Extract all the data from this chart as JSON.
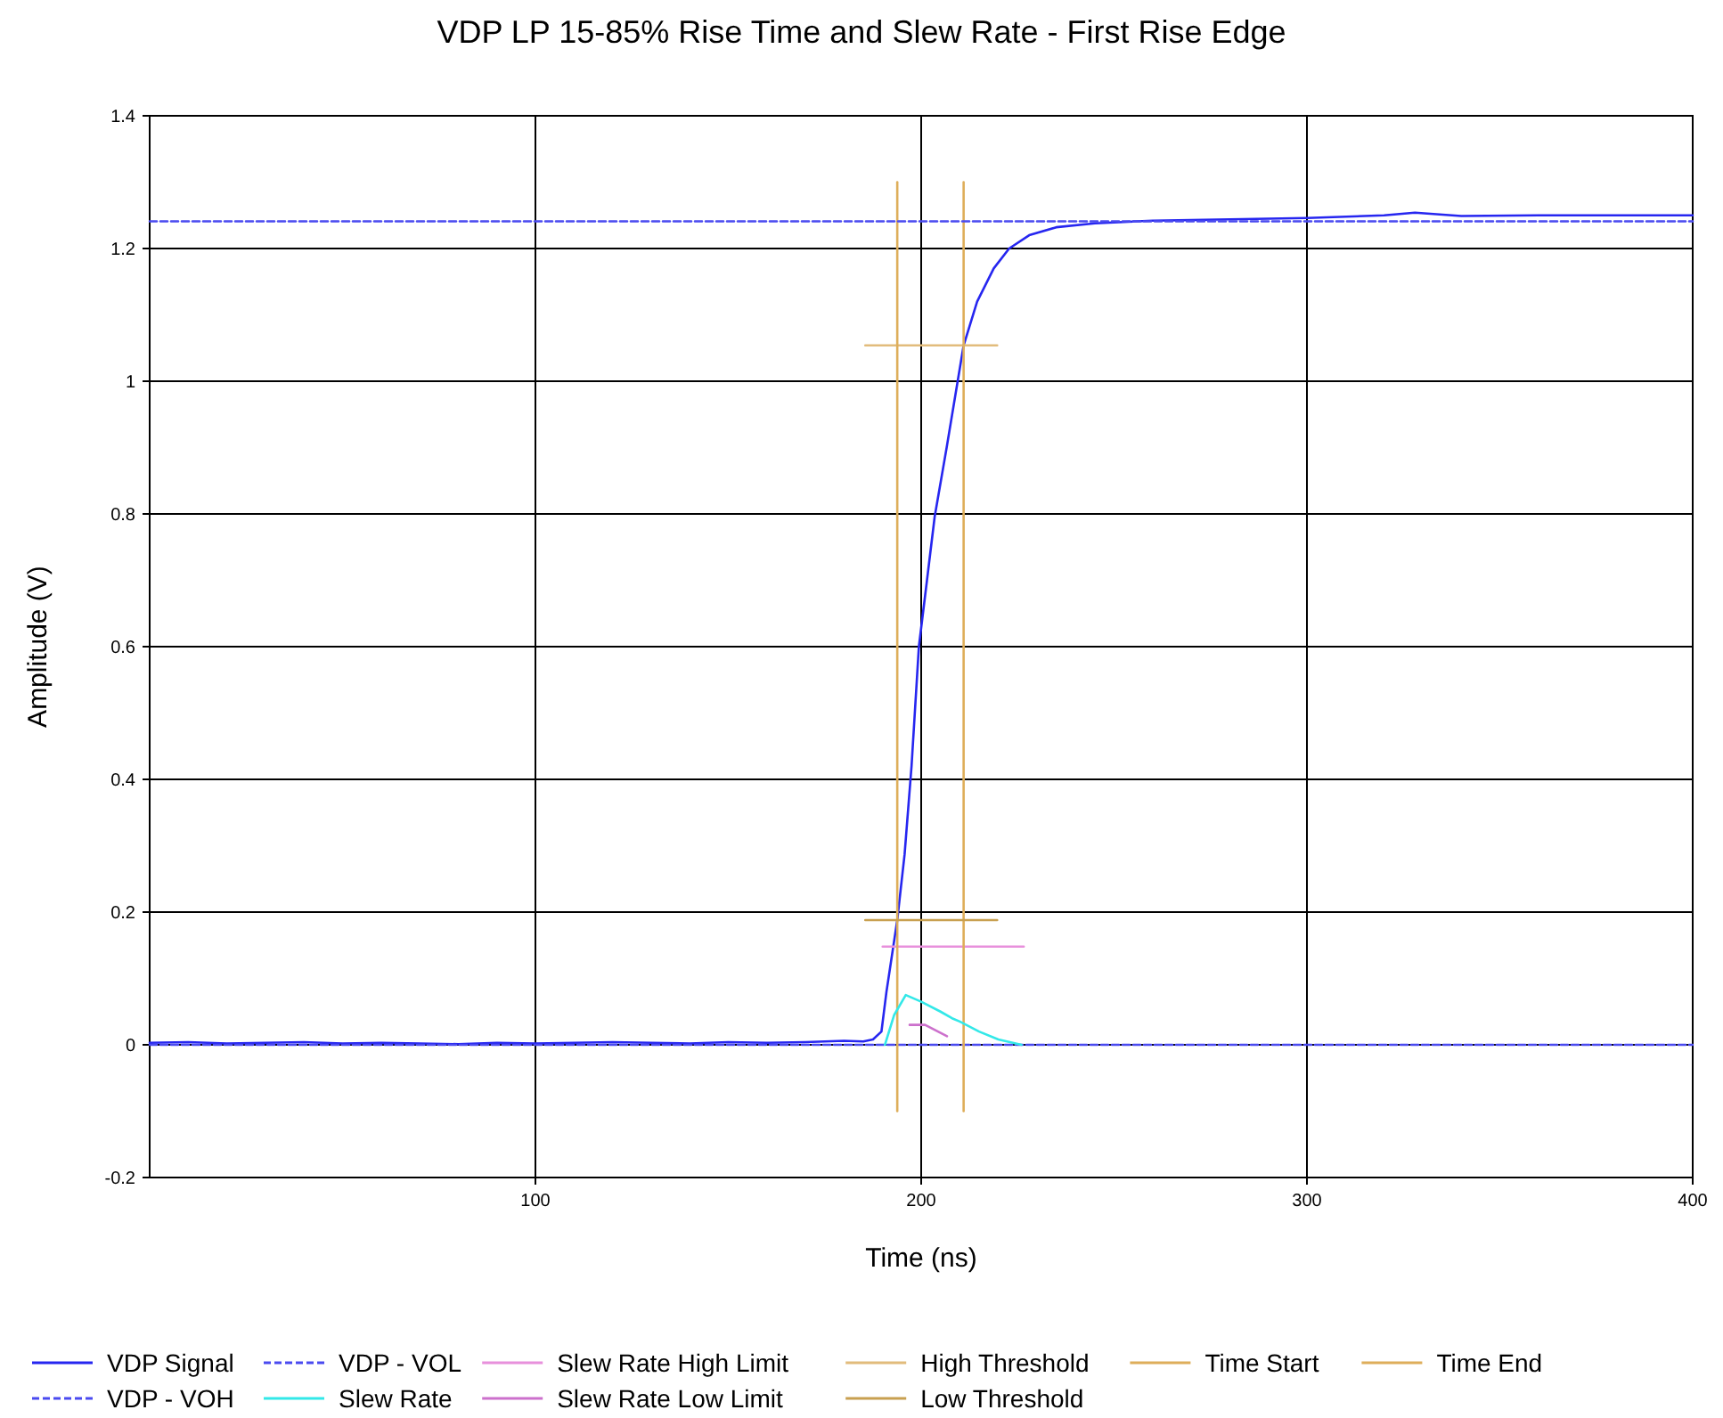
{
  "chart_data": {
    "type": "line",
    "title": "VDP LP 15-85% Rise Time and Slew Rate - First Rise Edge",
    "xlabel": "Time (ns)",
    "ylabel": "Amplitude (V)",
    "xlim": [
      0,
      400
    ],
    "ylim": [
      -0.2,
      1.4
    ],
    "xticks": [
      100,
      200,
      300,
      400
    ],
    "yticks": [
      -0.2,
      0,
      0.2,
      0.4,
      0.6,
      0.8,
      1,
      1.2,
      1.4
    ],
    "grid": true,
    "legend": "bottom",
    "series": [
      {
        "name": "VDP Signal",
        "color": "#2626f0",
        "line_style": "solid",
        "x": [
          0,
          10,
          20,
          30,
          40,
          50,
          60,
          70,
          80,
          90,
          100,
          110,
          120,
          130,
          140,
          150,
          160,
          170,
          180,
          185,
          187.5,
          189.7,
          191,
          193.8,
          195.7,
          197.5,
          199.4,
          201.5,
          203.5,
          206.6,
          211,
          214.5,
          218.8,
          222.8,
          228,
          235,
          245,
          260,
          280,
          300,
          320,
          328,
          340,
          360,
          380,
          400
        ],
        "values": [
          0.003,
          0.004,
          0.002,
          0.003,
          0.004,
          0.002,
          0.003,
          0.002,
          0.001,
          0.003,
          0.002,
          0.003,
          0.004,
          0.003,
          0.002,
          0.004,
          0.003,
          0.004,
          0.006,
          0.005,
          0.008,
          0.02,
          0.08,
          0.188,
          0.287,
          0.42,
          0.6,
          0.7,
          0.796,
          0.9,
          1.054,
          1.12,
          1.17,
          1.2,
          1.22,
          1.232,
          1.238,
          1.242,
          1.244,
          1.246,
          1.25,
          1.254,
          1.249,
          1.25,
          1.25,
          1.25
        ]
      },
      {
        "name": "VDP - VOL",
        "color": "#4a4af0",
        "line_style": "dashed",
        "x": [
          0,
          400
        ],
        "values": [
          0,
          0
        ]
      },
      {
        "name": "Slew Rate High Limit",
        "color": "#e890dc",
        "line_style": "solid",
        "x": [
          190,
          226.6
        ],
        "values": [
          0.148,
          0.148
        ]
      },
      {
        "name": "High Threshold",
        "color": "#e2bc7c",
        "line_style": "solid",
        "x": [
          185.5,
          219.7
        ],
        "values": [
          1.054,
          1.054
        ]
      },
      {
        "name": "Time Start",
        "color": "#deae5a",
        "line_style": "solid",
        "x": [
          193.8,
          193.8
        ],
        "values": [
          1.3,
          -0.1
        ]
      },
      {
        "name": "Time End",
        "color": "#deae5a",
        "line_style": "solid",
        "x": [
          211,
          211
        ],
        "values": [
          1.3,
          -0.1
        ]
      },
      {
        "name": "VDP - VOH",
        "color": "#4a4af0",
        "line_style": "dashed",
        "x": [
          0,
          400
        ],
        "values": [
          1.241,
          1.241
        ]
      },
      {
        "name": "Slew Rate",
        "color": "#33e8e8",
        "line_style": "solid",
        "x": [
          190.6,
          193,
          196,
          198,
          200,
          205,
          208,
          210,
          215,
          220,
          226
        ],
        "values": [
          0,
          0.045,
          0.075,
          0.07,
          0.065,
          0.05,
          0.04,
          0.035,
          0.02,
          0.008,
          0
        ]
      },
      {
        "name": "Slew Rate Low Limit",
        "color": "#cc70cc",
        "line_style": "solid",
        "x": [
          197,
          201,
          206.7
        ],
        "values": [
          0.03,
          0.03,
          0.013
        ]
      },
      {
        "name": "Low Threshold",
        "color": "#c8a050",
        "line_style": "solid",
        "x": [
          185.5,
          219.7
        ],
        "values": [
          0.188,
          0.188
        ]
      }
    ]
  }
}
